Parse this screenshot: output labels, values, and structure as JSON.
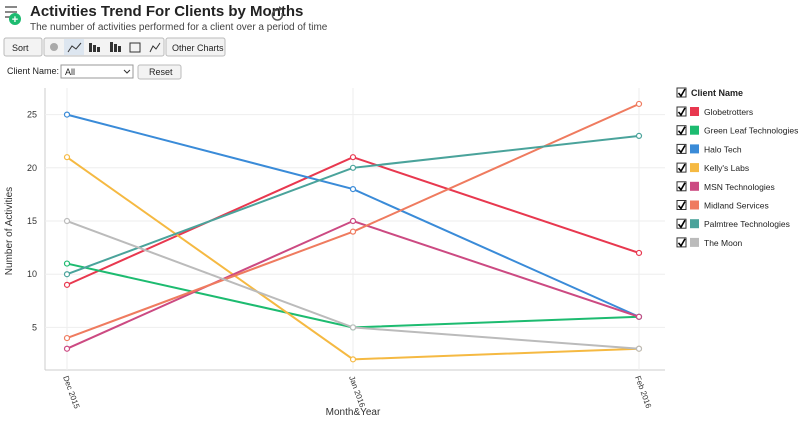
{
  "ui": {
    "sort": "Sort",
    "other_charts": "Other Charts",
    "filter_label": "Client Name:",
    "filter_value": "All",
    "reset": "Reset"
  },
  "chart_data": {
    "type": "line",
    "title": "Activities Trend For Clients by Months",
    "subtitle": "The number of activities performed for a client over a period of time",
    "x_label": "Month&Year",
    "y_label": "Number of Activities",
    "legend_title": "Client Name",
    "legend_position": "right",
    "categories": [
      "Dec 2015",
      "Jan 2016",
      "Feb 2016"
    ],
    "series": [
      {
        "name": "Globetrotters",
        "color": "#e8384f",
        "values": [
          9,
          21,
          12
        ]
      },
      {
        "name": "Green Leaf Technologies",
        "color": "#1dbb70",
        "values": [
          11,
          5,
          6
        ]
      },
      {
        "name": "Halo Tech",
        "color": "#3a8bd8",
        "values": [
          25,
          18,
          6
        ]
      },
      {
        "name": "Kelly's Labs",
        "color": "#f5b942",
        "values": [
          21,
          2,
          3
        ]
      },
      {
        "name": "MSN Technologies",
        "color": "#cc4a82",
        "values": [
          3,
          15,
          6
        ]
      },
      {
        "name": "Midland Services",
        "color": "#ef7b5f",
        "values": [
          4,
          14,
          26
        ]
      },
      {
        "name": "Palmtree Technologies",
        "color": "#4aa39b",
        "values": [
          10,
          20,
          23
        ]
      },
      {
        "name": "The Moon",
        "color": "#bbbbbb",
        "values": [
          15,
          5,
          3
        ]
      }
    ],
    "ylim": [
      1,
      27.5
    ],
    "yticks": [
      5,
      10,
      15,
      20,
      25
    ],
    "grid": true
  }
}
